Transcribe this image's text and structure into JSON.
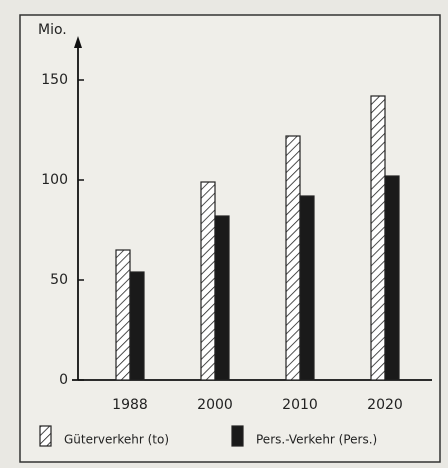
{
  "chart_data": {
    "type": "bar",
    "y_unit_label": "Mio.",
    "categories": [
      "1988",
      "2000",
      "2010",
      "2020"
    ],
    "series": [
      {
        "name": "Güterverkehr (to)",
        "color": "#ffffff",
        "pattern": "hatched",
        "values": [
          65,
          99,
          122,
          142
        ]
      },
      {
        "name": "Pers.-Verkehr (Pers.)",
        "color": "#1a1a1a",
        "pattern": "solid",
        "values": [
          54,
          82,
          92,
          102
        ]
      }
    ],
    "ylim": [
      0,
      170
    ],
    "yticks": [
      0,
      50,
      100,
      150
    ],
    "grid": false
  }
}
